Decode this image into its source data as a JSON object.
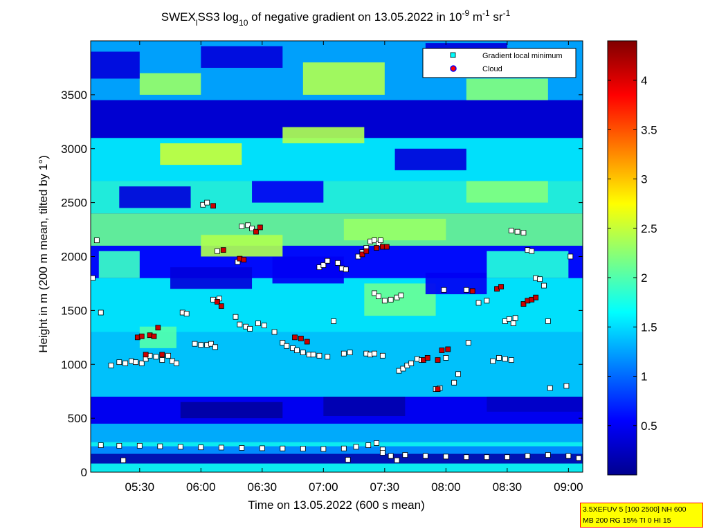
{
  "chart_data": {
    "type": "heatmap",
    "title": {
      "prefix": "SWEX",
      "sub1": "l",
      "mid1": "SS3 log",
      "sub2": "10",
      "mid2": " of negative gradient on 13.05.2022 in 10",
      "sup1": "-9",
      "mid3": " m",
      "sup2": "-1",
      "mid4": " sr",
      "sup3": "-1"
    },
    "xlabel": "Time on 13.05.2022 (600 s mean)",
    "ylabel": "Height in m (200 m mean, tilted by 1°)",
    "x_ticks": [
      "05:30",
      "06:00",
      "06:30",
      "07:00",
      "07:30",
      "08:00",
      "08:30",
      "09:00"
    ],
    "x_tick_values_min": [
      330,
      360,
      390,
      420,
      450,
      480,
      510,
      540
    ],
    "xlim_min": [
      306,
      547
    ],
    "y_ticks": [
      "0",
      "500",
      "1000",
      "1500",
      "2000",
      "2500",
      "3000",
      "3500"
    ],
    "y_tick_values": [
      0,
      500,
      1000,
      1500,
      2000,
      2500,
      3000,
      3500
    ],
    "ylim": [
      0,
      4000
    ],
    "colorbar": {
      "ticks": [
        "0.5",
        "1",
        "1.5",
        "2",
        "2.5",
        "3",
        "3.5",
        "4"
      ],
      "tick_values": [
        0.5,
        1,
        1.5,
        2,
        2.5,
        3,
        3.5,
        4
      ],
      "range": [
        0,
        4.4
      ],
      "colormap": "jet"
    },
    "legend": {
      "placement": "top-right",
      "entries": [
        {
          "label": "Gradient local minimum",
          "marker": "square",
          "color": "#00ffff"
        },
        {
          "label": "Cloud",
          "marker": "circle",
          "color": "#ff0000",
          "edge": "#0000ff"
        }
      ]
    },
    "bands": [
      {
        "t0": 306,
        "t1": 547,
        "h0": 0,
        "h1": 280,
        "v": 1.7
      },
      {
        "t0": 306,
        "t1": 547,
        "h0": 280,
        "h1": 450,
        "v": 1.35
      },
      {
        "t0": 306,
        "t1": 547,
        "h0": 450,
        "h1": 700,
        "v": 0.5
      },
      {
        "t0": 306,
        "t1": 547,
        "h0": 700,
        "h1": 1300,
        "v": 1.45
      },
      {
        "t0": 306,
        "t1": 547,
        "h0": 1300,
        "h1": 1800,
        "v": 1.6
      },
      {
        "t0": 306,
        "t1": 547,
        "h0": 1800,
        "h1": 2100,
        "v": 0.6
      },
      {
        "t0": 306,
        "t1": 547,
        "h0": 2100,
        "h1": 2400,
        "v": 2.1
      },
      {
        "t0": 306,
        "t1": 547,
        "h0": 2400,
        "h1": 2700,
        "v": 1.8
      },
      {
        "t0": 306,
        "t1": 547,
        "h0": 2700,
        "h1": 3100,
        "v": 1.6
      },
      {
        "t0": 306,
        "t1": 547,
        "h0": 3100,
        "h1": 3450,
        "v": 0.35
      },
      {
        "t0": 306,
        "t1": 547,
        "h0": 3450,
        "h1": 4000,
        "v": 1.3
      }
    ],
    "patches": [
      {
        "t0": 306,
        "t1": 547,
        "h0": 80,
        "h1": 170,
        "v": 0.2
      },
      {
        "t0": 306,
        "t1": 547,
        "h0": 170,
        "h1": 240,
        "v": 1.1
      },
      {
        "t0": 350,
        "t1": 400,
        "h0": 500,
        "h1": 650,
        "v": 0.15
      },
      {
        "t0": 420,
        "t1": 460,
        "h0": 520,
        "h1": 700,
        "v": 0.2
      },
      {
        "t0": 500,
        "t1": 547,
        "h0": 560,
        "h1": 700,
        "v": 0.3
      },
      {
        "t0": 330,
        "t1": 348,
        "h0": 1150,
        "h1": 1350,
        "v": 2.0
      },
      {
        "t0": 310,
        "t1": 330,
        "h0": 1800,
        "h1": 2050,
        "v": 1.9
      },
      {
        "t0": 345,
        "t1": 385,
        "h0": 1700,
        "h1": 1900,
        "v": 0.4
      },
      {
        "t0": 395,
        "t1": 430,
        "h0": 1750,
        "h1": 2000,
        "v": 0.5
      },
      {
        "t0": 440,
        "t1": 475,
        "h0": 1450,
        "h1": 1750,
        "v": 2.1
      },
      {
        "t0": 470,
        "t1": 500,
        "h0": 1650,
        "h1": 1850,
        "v": 0.5
      },
      {
        "t0": 500,
        "t1": 540,
        "h0": 1800,
        "h1": 2050,
        "v": 1.8
      },
      {
        "t0": 360,
        "t1": 400,
        "h0": 2000,
        "h1": 2200,
        "v": 2.4
      },
      {
        "t0": 430,
        "t1": 480,
        "h0": 2150,
        "h1": 2350,
        "v": 2.3
      },
      {
        "t0": 490,
        "t1": 530,
        "h0": 2500,
        "h1": 2700,
        "v": 2.2
      },
      {
        "t0": 320,
        "t1": 355,
        "h0": 2450,
        "h1": 2650,
        "v": 0.4
      },
      {
        "t0": 385,
        "t1": 420,
        "h0": 2500,
        "h1": 2700,
        "v": 0.5
      },
      {
        "t0": 455,
        "t1": 490,
        "h0": 2800,
        "h1": 3000,
        "v": 0.4
      },
      {
        "t0": 340,
        "t1": 380,
        "h0": 2850,
        "h1": 3050,
        "v": 2.5
      },
      {
        "t0": 400,
        "t1": 440,
        "h0": 3050,
        "h1": 3200,
        "v": 2.4
      },
      {
        "t0": 330,
        "t1": 360,
        "h0": 3500,
        "h1": 3700,
        "v": 2.3
      },
      {
        "t0": 410,
        "t1": 450,
        "h0": 3500,
        "h1": 3800,
        "v": 2.4
      },
      {
        "t0": 490,
        "t1": 530,
        "h0": 3450,
        "h1": 3650,
        "v": 2.2
      },
      {
        "t0": 360,
        "t1": 400,
        "h0": 3750,
        "h1": 3950,
        "v": 0.4
      },
      {
        "t0": 470,
        "t1": 510,
        "h0": 3780,
        "h1": 3980,
        "v": 0.4
      },
      {
        "t0": 306,
        "t1": 330,
        "h0": 3650,
        "h1": 3900,
        "v": 0.4
      }
    ],
    "gradient_minima": [
      [
        307,
        1800
      ],
      [
        309,
        2150
      ],
      [
        311,
        1480
      ],
      [
        316,
        990
      ],
      [
        320,
        1020
      ],
      [
        323,
        1010
      ],
      [
        326,
        1030
      ],
      [
        328,
        1020
      ],
      [
        331,
        1010
      ],
      [
        333,
        1050
      ],
      [
        335,
        1080
      ],
      [
        338,
        1070
      ],
      [
        341,
        1040
      ],
      [
        344,
        1080
      ],
      [
        346,
        1030
      ],
      [
        348,
        1010
      ],
      [
        351,
        1480
      ],
      [
        353,
        1470
      ],
      [
        357,
        1190
      ],
      [
        360,
        1180
      ],
      [
        363,
        1180
      ],
      [
        365,
        1190
      ],
      [
        367,
        1160
      ],
      [
        361,
        2480
      ],
      [
        363,
        2500
      ],
      [
        366,
        1600
      ],
      [
        369,
        1610
      ],
      [
        368,
        2050
      ],
      [
        377,
        1440
      ],
      [
        379,
        1370
      ],
      [
        382,
        1350
      ],
      [
        384,
        1330
      ],
      [
        388,
        1380
      ],
      [
        391,
        1360
      ],
      [
        378,
        1950
      ],
      [
        380,
        2280
      ],
      [
        383,
        2290
      ],
      [
        385,
        2260
      ],
      [
        396,
        1300
      ],
      [
        400,
        1200
      ],
      [
        402,
        1170
      ],
      [
        405,
        1150
      ],
      [
        407,
        1130
      ],
      [
        410,
        1110
      ],
      [
        413,
        1090
      ],
      [
        415,
        1090
      ],
      [
        418,
        1080
      ],
      [
        422,
        1070
      ],
      [
        418,
        1900
      ],
      [
        420,
        1920
      ],
      [
        422,
        1960
      ],
      [
        425,
        1400
      ],
      [
        427,
        1940
      ],
      [
        429,
        1890
      ],
      [
        431,
        1880
      ],
      [
        430,
        1100
      ],
      [
        433,
        1110
      ],
      [
        437,
        2000
      ],
      [
        439,
        2040
      ],
      [
        441,
        2080
      ],
      [
        443,
        2140
      ],
      [
        445,
        2150
      ],
      [
        447,
        2120
      ],
      [
        448,
        2150
      ],
      [
        441,
        1100
      ],
      [
        443,
        1090
      ],
      [
        445,
        1100
      ],
      [
        449,
        1080
      ],
      [
        445,
        1660
      ],
      [
        447,
        1630
      ],
      [
        450,
        1590
      ],
      [
        453,
        1600
      ],
      [
        456,
        1620
      ],
      [
        458,
        1640
      ],
      [
        457,
        940
      ],
      [
        459,
        960
      ],
      [
        461,
        990
      ],
      [
        463,
        1010
      ],
      [
        466,
        1050
      ],
      [
        468,
        1040
      ],
      [
        475,
        770
      ],
      [
        477,
        780
      ],
      [
        479,
        1690
      ],
      [
        480,
        1060
      ],
      [
        484,
        830
      ],
      [
        486,
        910
      ],
      [
        490,
        1690
      ],
      [
        491,
        1200
      ],
      [
        496,
        1570
      ],
      [
        500,
        1590
      ],
      [
        503,
        1030
      ],
      [
        506,
        1060
      ],
      [
        509,
        1050
      ],
      [
        512,
        1040
      ],
      [
        509,
        1400
      ],
      [
        511,
        1420
      ],
      [
        513,
        1380
      ],
      [
        514,
        1430
      ],
      [
        512,
        2240
      ],
      [
        515,
        2230
      ],
      [
        518,
        2220
      ],
      [
        520,
        2060
      ],
      [
        522,
        2050
      ],
      [
        524,
        1800
      ],
      [
        526,
        1790
      ],
      [
        528,
        1730
      ],
      [
        530,
        1400
      ],
      [
        531,
        780
      ],
      [
        539,
        800
      ],
      [
        541,
        2000
      ],
      [
        311,
        250
      ],
      [
        320,
        245
      ],
      [
        330,
        245
      ],
      [
        340,
        240
      ],
      [
        350,
        235
      ],
      [
        360,
        230
      ],
      [
        370,
        228
      ],
      [
        380,
        225
      ],
      [
        390,
        222
      ],
      [
        400,
        220
      ],
      [
        410,
        218
      ],
      [
        420,
        215
      ],
      [
        430,
        220
      ],
      [
        436,
        235
      ],
      [
        442,
        250
      ],
      [
        446,
        270
      ],
      [
        449,
        210
      ],
      [
        453,
        150
      ],
      [
        460,
        160
      ],
      [
        470,
        150
      ],
      [
        480,
        145
      ],
      [
        490,
        140
      ],
      [
        500,
        140
      ],
      [
        510,
        140
      ],
      [
        520,
        150
      ],
      [
        530,
        160
      ],
      [
        540,
        150
      ],
      [
        545,
        130
      ],
      [
        322,
        110
      ],
      [
        432,
        115
      ],
      [
        456,
        110
      ],
      [
        449,
        180
      ]
    ],
    "clouds": [
      [
        329,
        1250
      ],
      [
        331,
        1260
      ],
      [
        333,
        1090
      ],
      [
        335,
        1270
      ],
      [
        337,
        1260
      ],
      [
        339,
        1340
      ],
      [
        341,
        1090
      ],
      [
        366,
        2470
      ],
      [
        368,
        1580
      ],
      [
        370,
        1540
      ],
      [
        371,
        2060
      ],
      [
        379,
        1980
      ],
      [
        381,
        1970
      ],
      [
        387,
        2230
      ],
      [
        389,
        2270
      ],
      [
        406,
        1250
      ],
      [
        409,
        1240
      ],
      [
        412,
        1210
      ],
      [
        439,
        2020
      ],
      [
        441,
        2050
      ],
      [
        446,
        2080
      ],
      [
        449,
        2090
      ],
      [
        451,
        2090
      ],
      [
        469,
        1040
      ],
      [
        471,
        1060
      ],
      [
        476,
        1040
      ],
      [
        478,
        1130
      ],
      [
        481,
        1140
      ],
      [
        493,
        1680
      ],
      [
        518,
        1560
      ],
      [
        520,
        1590
      ],
      [
        522,
        1600
      ],
      [
        524,
        1620
      ],
      [
        505,
        1700
      ],
      [
        507,
        1720
      ],
      [
        476,
        770
      ]
    ]
  },
  "info_box": {
    "line1": "3.5XEFUV 5 [100 2500] NH 600",
    "line2": "MB 200 RG 15% TI 0 HI 15"
  }
}
